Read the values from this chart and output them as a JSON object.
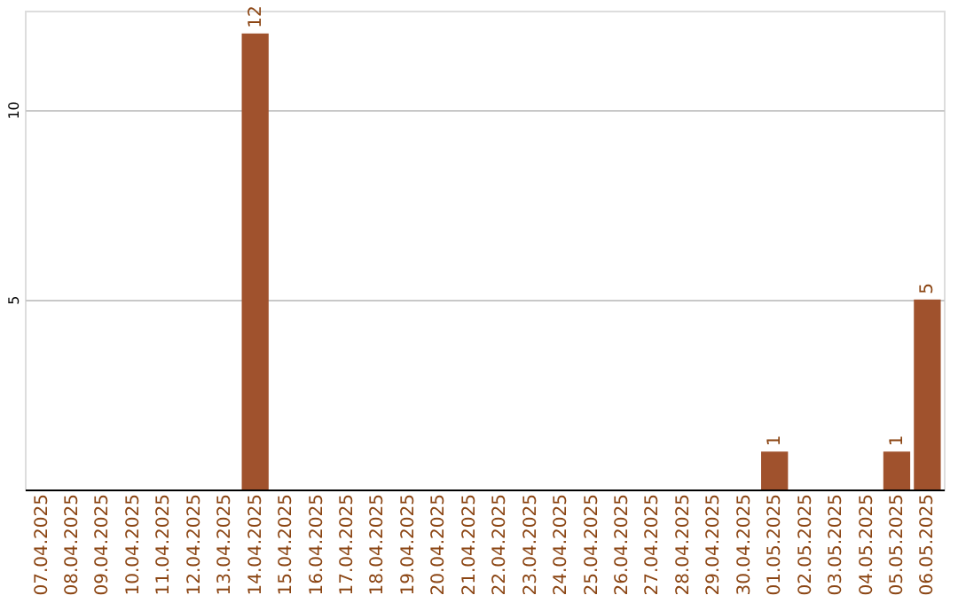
{
  "chart_data": {
    "type": "bar",
    "categories": [
      "07.04.2025",
      "08.04.2025",
      "09.04.2025",
      "10.04.2025",
      "11.04.2025",
      "12.04.2025",
      "13.04.2025",
      "14.04.2025",
      "15.04.2025",
      "16.04.2025",
      "17.04.2025",
      "18.04.2025",
      "19.04.2025",
      "20.04.2025",
      "21.04.2025",
      "22.04.2025",
      "23.04.2025",
      "24.04.2025",
      "25.04.2025",
      "26.04.2025",
      "27.04.2025",
      "28.04.2025",
      "29.04.2025",
      "30.04.2025",
      "01.05.2025",
      "02.05.2025",
      "03.05.2025",
      "04.05.2025",
      "05.05.2025",
      "06.05.2025"
    ],
    "values": [
      0,
      0,
      0,
      0,
      0,
      0,
      0,
      12,
      0,
      0,
      0,
      0,
      0,
      0,
      0,
      0,
      0,
      0,
      0,
      0,
      0,
      0,
      0,
      0,
      1,
      0,
      0,
      0,
      1,
      5
    ],
    "value_labels": [
      null,
      null,
      null,
      null,
      null,
      null,
      null,
      "12",
      null,
      null,
      null,
      null,
      null,
      null,
      null,
      null,
      null,
      null,
      null,
      null,
      null,
      null,
      null,
      null,
      "1",
      null,
      null,
      null,
      "1",
      "5"
    ],
    "color": "#a0522d",
    "ylim": [
      0,
      12.6
    ],
    "yticks": [
      5,
      10
    ],
    "grid": "y"
  }
}
